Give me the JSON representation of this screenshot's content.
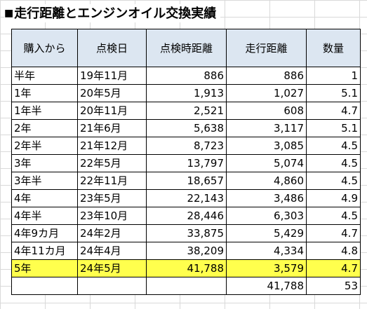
{
  "title": "走行距離とエンジンオイル交換実績",
  "title_marker": "■",
  "highlight_color": "#ffff4d",
  "header_color": "#dce6f1",
  "columns": [
    "購入から",
    "点検日",
    "点検時距離",
    "走行距離",
    "数量"
  ],
  "rows": [
    [
      "半年",
      "19年11月",
      "886",
      "886",
      "1"
    ],
    [
      "1年",
      "20年5月",
      "1,913",
      "1,027",
      "5.1"
    ],
    [
      "1年半",
      "20年11月",
      "2,521",
      "608",
      "4.7"
    ],
    [
      "2年",
      "21年6月",
      "5,638",
      "3,117",
      "5.1"
    ],
    [
      "2年半",
      "21年12月",
      "8,723",
      "3,085",
      "4.5"
    ],
    [
      "3年",
      "22年5月",
      "13,797",
      "5,074",
      "4.5"
    ],
    [
      "3年半",
      "22年11月",
      "18,657",
      "4,860",
      "4.5"
    ],
    [
      "4年",
      "23年5月",
      "22,143",
      "3,486",
      "4.9"
    ],
    [
      "4年半",
      "23年10月",
      "28,446",
      "6,303",
      "4.5"
    ],
    [
      "4年9カ月",
      "24年2月",
      "33,875",
      "5,429",
      "4.7"
    ],
    [
      "4年11カ月",
      "24年4月",
      "38,209",
      "4,334",
      "4.8"
    ],
    [
      "5年",
      "24年5月",
      "41,788",
      "3,579",
      "4.7"
    ]
  ],
  "totals": [
    "",
    "",
    "",
    "41,788",
    "53"
  ]
}
